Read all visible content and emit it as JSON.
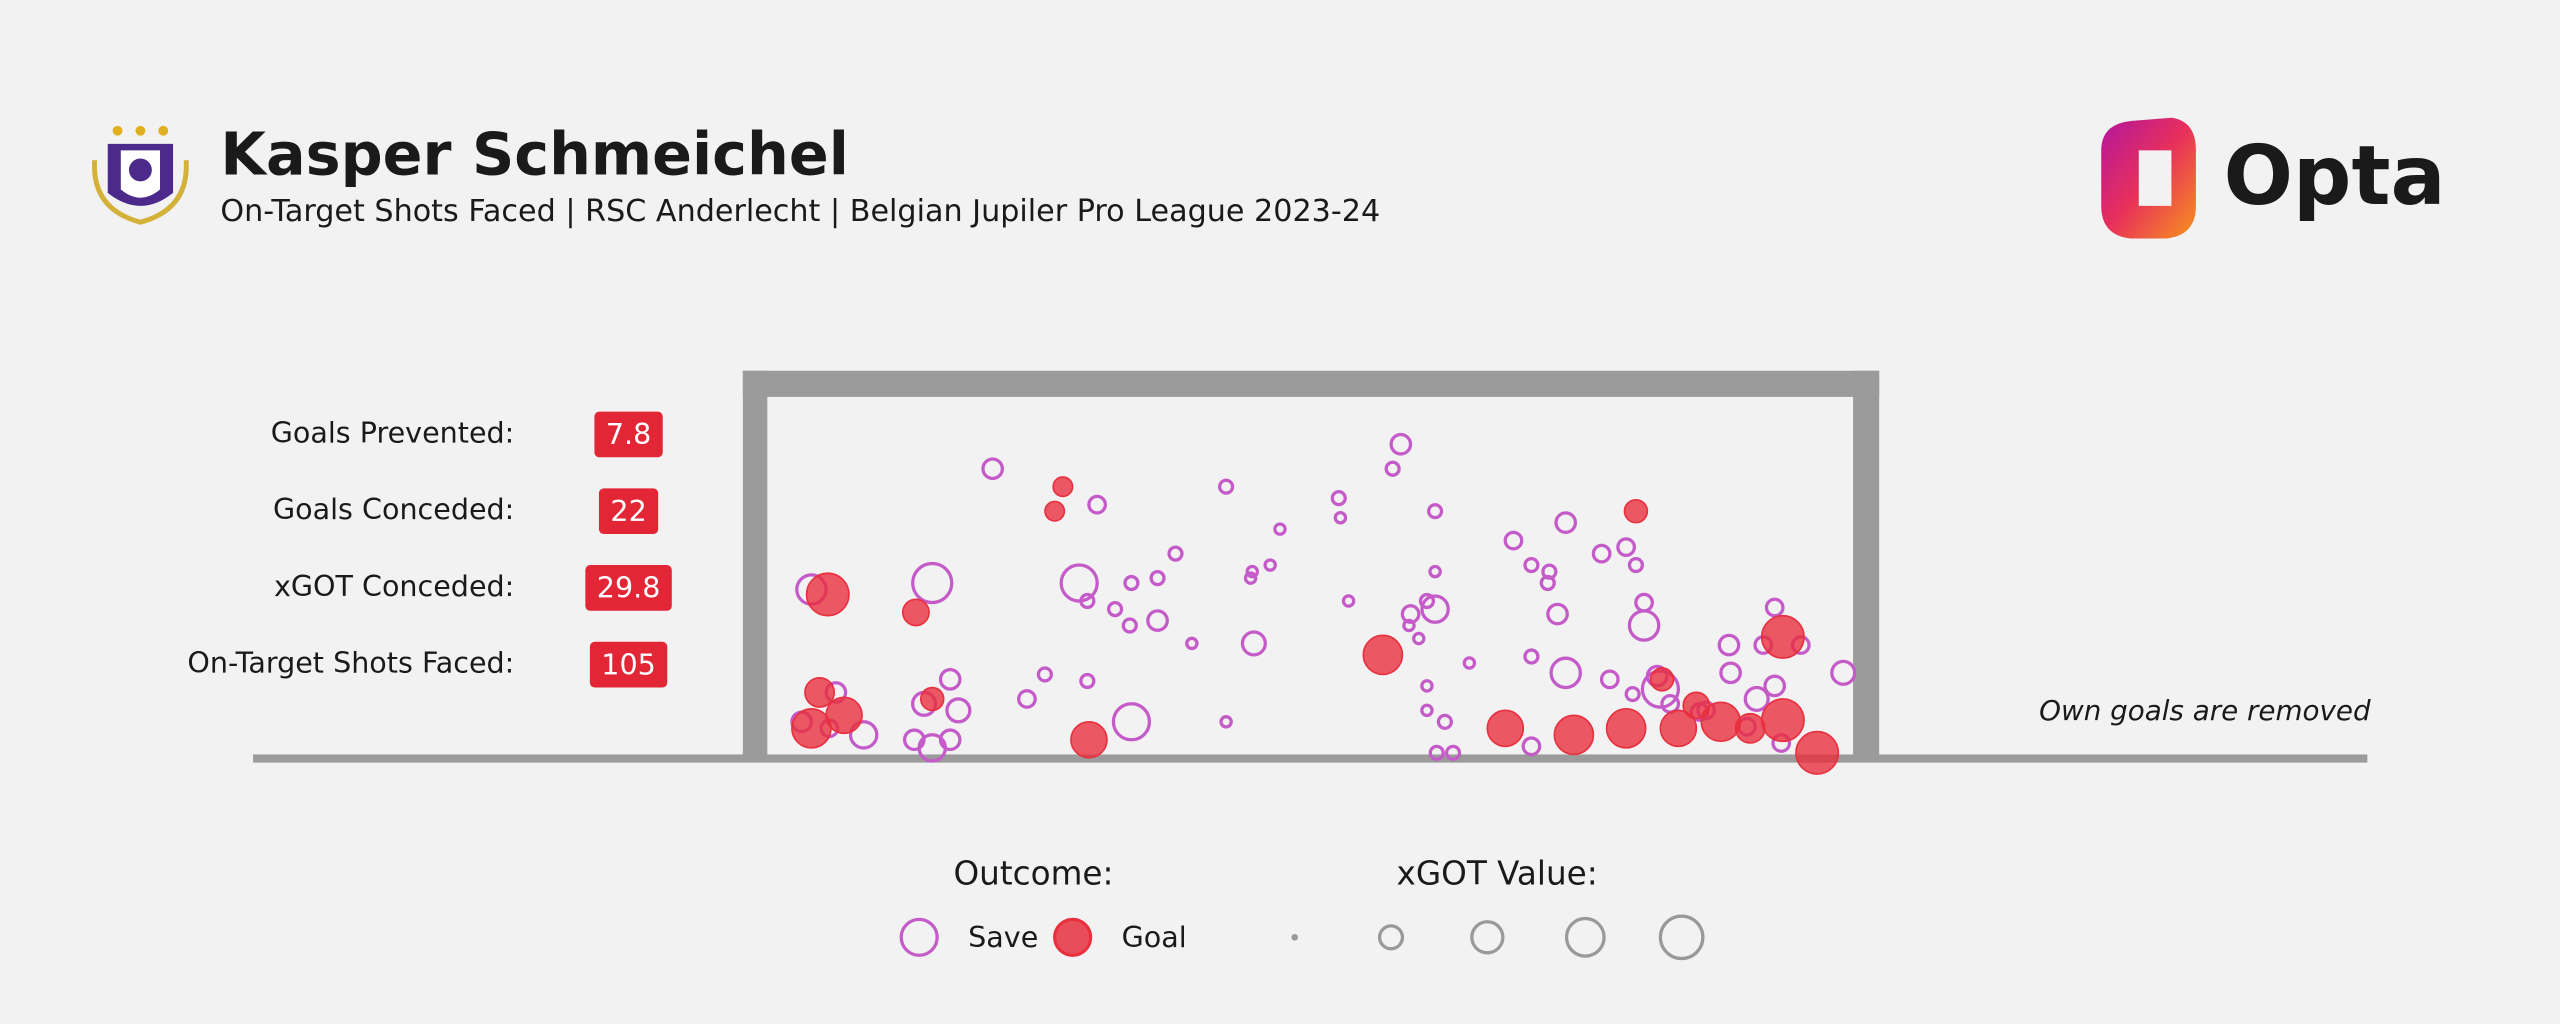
{
  "header": {
    "title": "Kasper Schmeichel",
    "subtitle": "On-Target Shots Faced | RSC Anderlecht | Belgian Jupiler Pro League 2023-24",
    "brand": "Opta"
  },
  "stats": [
    {
      "label": "Goals Prevented:",
      "value": 7.8
    },
    {
      "label": "Goals Conceded:",
      "value": 22
    },
    {
      "label": "xGOT Conceded:",
      "value": 29.8
    },
    {
      "label": "On-Target Shots Faced:",
      "value": 105
    }
  ],
  "chart_data": {
    "type": "scatter",
    "note": "Own goals are removed",
    "legend_title": "Outcome:",
    "size_title": "xGOT Value:",
    "xlim": [
      0,
      665
    ],
    "ylim": [
      0,
      220
    ],
    "series": [
      {
        "name": "Save",
        "color": "#c45bc9",
        "x": [
          138,
          388,
          383,
          281,
          202,
          350,
          351,
          314,
          409,
          457,
          489,
          526,
          511,
          250,
          468,
          479,
          532,
          478,
          308,
          297,
          296,
          409,
          239,
          223,
          191,
          101,
          27,
          196,
          356,
          404,
          409,
          394,
          393,
          213,
          239,
          222,
          399,
          484,
          537,
          537,
          617,
          260,
          298,
          589,
          610,
          633,
          468,
          430,
          489,
          516,
          590,
          617,
          659,
          170,
          196,
          404,
          112,
          42,
          159,
          547,
          553,
          606,
          96,
          117,
          404,
          415,
          281,
          223,
          21,
          59,
          90,
          112,
          101,
          468,
          410,
          420,
          575,
          621,
          600,
          38,
          545,
          571,
          530
        ],
        "values": [
          176,
          191,
          176,
          165,
          154,
          158,
          146,
          139,
          150,
          132,
          143,
          128,
          124,
          124,
          117,
          113,
          117,
          106,
          117,
          113,
          109,
          113,
          109,
          106,
          106,
          106,
          102,
          95,
          95,
          95,
          90,
          87,
          80,
          90,
          83,
          80,
          72,
          87,
          94,
          80,
          91,
          69,
          69,
          68,
          68,
          68,
          61,
          57,
          51,
          47,
          51,
          43,
          51,
          50,
          46,
          43,
          47,
          39,
          35,
          41,
          32,
          35,
          32,
          28,
          28,
          21,
          21,
          21,
          21,
          13,
          10,
          10,
          5,
          6,
          2,
          2,
          28,
          8,
          18,
          17,
          49,
          27,
          38
        ],
        "sizes": [
          0.18,
          0.18,
          0.08,
          0.08,
          0.13,
          0.08,
          0.05,
          0.05,
          0.08,
          0.13,
          0.18,
          0.13,
          0.13,
          0.08,
          0.08,
          0.08,
          0.08,
          0.08,
          0.05,
          0.05,
          0.05,
          0.05,
          0.08,
          0.08,
          0.62,
          0.73,
          0.41,
          0.08,
          0.05,
          0.08,
          0.33,
          0.13,
          0.05,
          0.08,
          0.18,
          0.08,
          0.05,
          0.18,
          0.13,
          0.41,
          0.13,
          0.05,
          0.25,
          0.18,
          0.13,
          0.13,
          0.08,
          0.05,
          0.41,
          0.13,
          0.18,
          0.18,
          0.25,
          0.08,
          0.08,
          0.05,
          0.18,
          0.18,
          0.13,
          0.62,
          0.13,
          0.25,
          0.25,
          0.25,
          0.05,
          0.08,
          0.05,
          0.62,
          0.18,
          0.33,
          0.18,
          0.18,
          0.33,
          0.13,
          0.08,
          0.08,
          0.13,
          0.13,
          0.13,
          0.13,
          0.18,
          0.13,
          0.08
        ]
      },
      {
        "name": "Goal",
        "color": "#e8303f",
        "x": [
          181,
          176,
          532,
          37,
          91,
          377,
          622,
          32,
          101,
          47,
          27,
          548,
          569,
          452,
          494,
          526,
          558,
          584,
          602,
          622,
          643,
          197
        ],
        "values": [
          165,
          150,
          150,
          99,
          88,
          62,
          73,
          39,
          35,
          25,
          17,
          47,
          31,
          17,
          13,
          17,
          17,
          21,
          17,
          22,
          2,
          10
        ],
        "sizes": [
          0.18,
          0.18,
          0.25,
          0.86,
          0.33,
          0.73,
          0.86,
          0.41,
          0.25,
          0.62,
          0.73,
          0.25,
          0.33,
          0.62,
          0.73,
          0.73,
          0.62,
          0.73,
          0.41,
          0.86,
          0.86,
          0.62
        ]
      }
    ]
  }
}
